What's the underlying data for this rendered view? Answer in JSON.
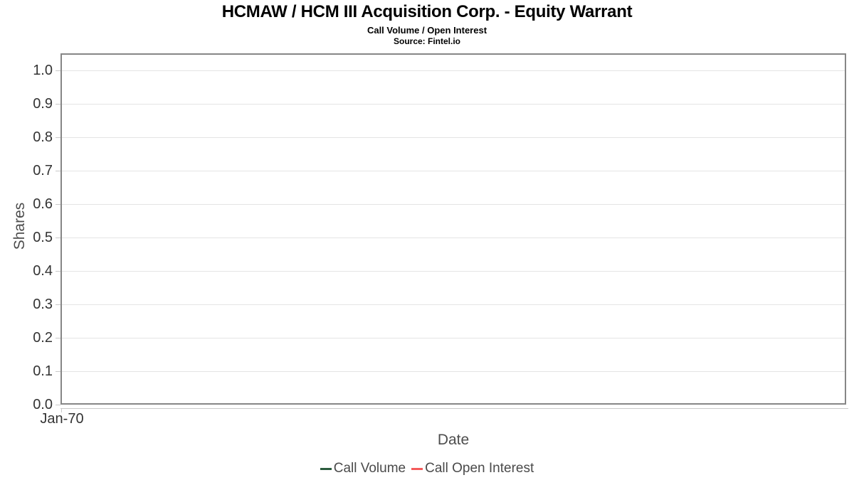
{
  "chart_data": {
    "type": "line",
    "title": "HCMAW / HCM III Acquisition Corp. - Equity Warrant",
    "subtitle": "Call Volume / Open Interest",
    "source_line": "Source: Fintel.io",
    "xlabel": "Date",
    "ylabel": "Shares",
    "x_tick_labels": [
      "Jan-70"
    ],
    "y_tick_labels": [
      "0.0",
      "0.1",
      "0.2",
      "0.3",
      "0.4",
      "0.5",
      "0.6",
      "0.7",
      "0.8",
      "0.9",
      "1.0"
    ],
    "ylim": [
      0.0,
      1.05
    ],
    "grid": "horizontal-only",
    "legend_position": "bottom-center",
    "series": [
      {
        "name": "Call Volume",
        "color": "#2b5c3e",
        "x": [],
        "values": []
      },
      {
        "name": "Call Open Interest",
        "color": "#f45b5b",
        "x": [],
        "values": []
      }
    ]
  },
  "colors": {
    "plot_border": "#868686",
    "gridline": "#e4e4e4",
    "tick": "#c9c9c9",
    "tick_label_text": "#333333",
    "axis_title_text": "#4d4d4d",
    "legend_text": "#4a4a4a",
    "title_text": "#000000",
    "background": "#ffffff",
    "call_volume": "#2b5c3e",
    "call_open_interest": "#f45b5b"
  }
}
